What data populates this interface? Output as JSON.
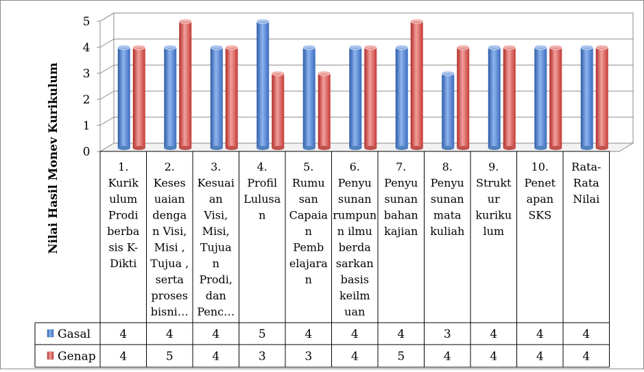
{
  "chart_data": {
    "type": "bar",
    "ylabel": "Nilai Hasil Monev Kurikulum",
    "ylim": [
      0,
      5
    ],
    "yticks": [
      "0",
      "1",
      "2",
      "3",
      "4",
      "5"
    ],
    "grid": true,
    "legend_position": "data table (bottom-left)",
    "categories": [
      "1. Kurikulum Prodi berbasis K-Dikti",
      "2. Kesesuaian dengan Visi, Misi , Tujuan , serta proses bisnis",
      "3. Kesuaian Visi, Misi, Tujuan Prodi, dan Penc...",
      "4. Profil Lulusan",
      "5. Rumusan Capaian Pembelajaran",
      "6. Penyusunan rumpun ilmu berdasarkan basis keilmuan",
      "7. Penyusunan bahan kajian",
      "8. Penyusunan mata kuliah",
      "9. Struktur kurikulum",
      "10. Penetapan SKS",
      "Rata-Rata Nilai"
    ],
    "category_lines": [
      [
        "1.",
        "Kurik",
        "ulum",
        "Prodi",
        "berba",
        "sis K-",
        "Dikti"
      ],
      [
        "2.",
        "Keses",
        "uaian",
        "denga",
        "n Visi,",
        "Misi ,",
        "Tujua ,",
        "serta",
        "proses",
        "bisni…"
      ],
      [
        "3.",
        "Kesuai",
        "an",
        "Visi,",
        "Misi,",
        "Tujua",
        "n",
        "Prodi,",
        "dan",
        "Penc…"
      ],
      [
        "4.",
        "Profil",
        "Lulusa",
        "n"
      ],
      [
        "5.",
        "Rumu",
        "san",
        "Capaia",
        "n",
        "Pemb",
        "elajara",
        "n"
      ],
      [
        "6.",
        "Penyu",
        "sunan",
        "rumpun",
        "n ilmu",
        "berda",
        "sarkan",
        "basis",
        "keilm",
        "uan"
      ],
      [
        "7.",
        "Penyu",
        "sunan",
        "bahan",
        "kajian"
      ],
      [
        "8.",
        "Penyu",
        "sunan",
        "mata",
        "kuliah"
      ],
      [
        "9.",
        "Strukt",
        "ur",
        "kuriku",
        "lum"
      ],
      [
        "10.",
        "Penet",
        "apan",
        "SKS"
      ],
      [
        "Rata-",
        "Rata",
        "Nilai"
      ]
    ],
    "series": [
      {
        "name": "Gasal",
        "color": "#4f81bd",
        "values": [
          4,
          4,
          4,
          5,
          4,
          4,
          4,
          3,
          4,
          4,
          4
        ]
      },
      {
        "name": "Genap",
        "color": "#c0504d",
        "values": [
          4,
          5,
          4,
          3,
          3,
          4,
          5,
          4,
          4,
          4,
          4
        ]
      }
    ]
  }
}
